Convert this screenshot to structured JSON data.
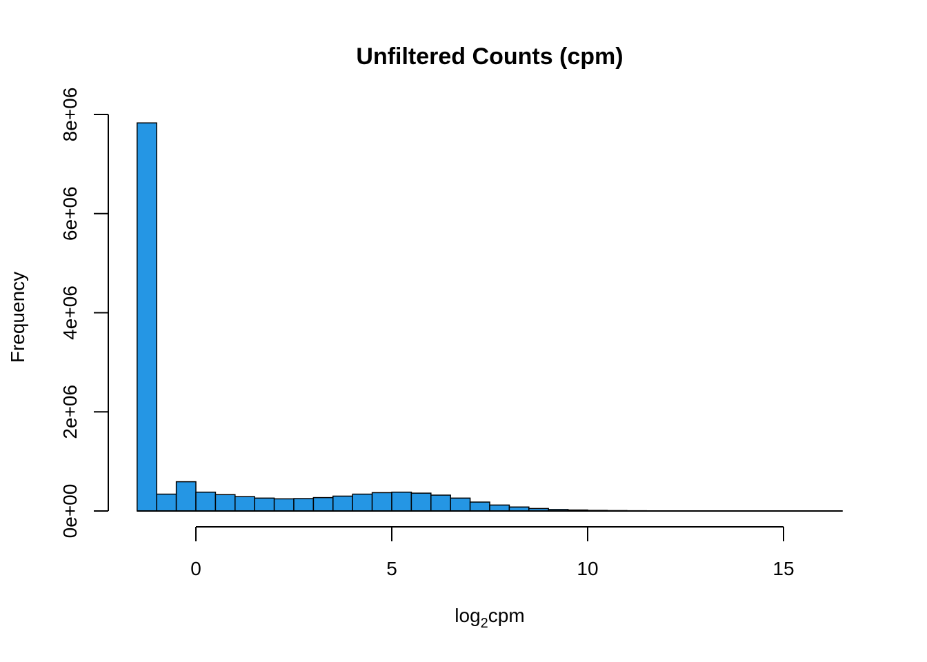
{
  "chart_data": {
    "type": "bar",
    "title": "Unfiltered Counts (cpm)",
    "xlabel": {
      "base": "log",
      "subscript": "2",
      "rest": "cpm"
    },
    "ylabel": "Frequency",
    "bar_color": "#2596E4",
    "border_color": "#000000",
    "xlim": [
      -1.5,
      16.5
    ],
    "ylim": [
      0,
      8000000
    ],
    "x_ticks": [
      0,
      5,
      10,
      15
    ],
    "x_tick_labels": [
      "0",
      "5",
      "10",
      "15"
    ],
    "y_ticks": [
      0,
      2000000,
      4000000,
      6000000,
      8000000
    ],
    "y_tick_labels": [
      "0e+00",
      "2e+06",
      "4e+06",
      "6e+06",
      "8e+06"
    ],
    "bin_width": 0.5,
    "bin_starts": [
      -1.5,
      -1.0,
      -0.5,
      0.0,
      0.5,
      1.0,
      1.5,
      2.0,
      2.5,
      3.0,
      3.5,
      4.0,
      4.5,
      5.0,
      5.5,
      6.0,
      6.5,
      7.0,
      7.5,
      8.0,
      8.5,
      9.0,
      9.5,
      10.0,
      10.5,
      11.0,
      11.5,
      12.0,
      12.5,
      13.0,
      13.5,
      14.0,
      14.5,
      15.0,
      15.5,
      16.0
    ],
    "values": [
      7830000,
      340000,
      590000,
      380000,
      330000,
      290000,
      260000,
      245000,
      250000,
      270000,
      300000,
      340000,
      370000,
      380000,
      360000,
      320000,
      260000,
      180000,
      120000,
      80000,
      50000,
      30000,
      20000,
      12000,
      8000,
      5000,
      3000,
      2000,
      1500,
      1000,
      800,
      600,
      400,
      300,
      200,
      100
    ]
  }
}
